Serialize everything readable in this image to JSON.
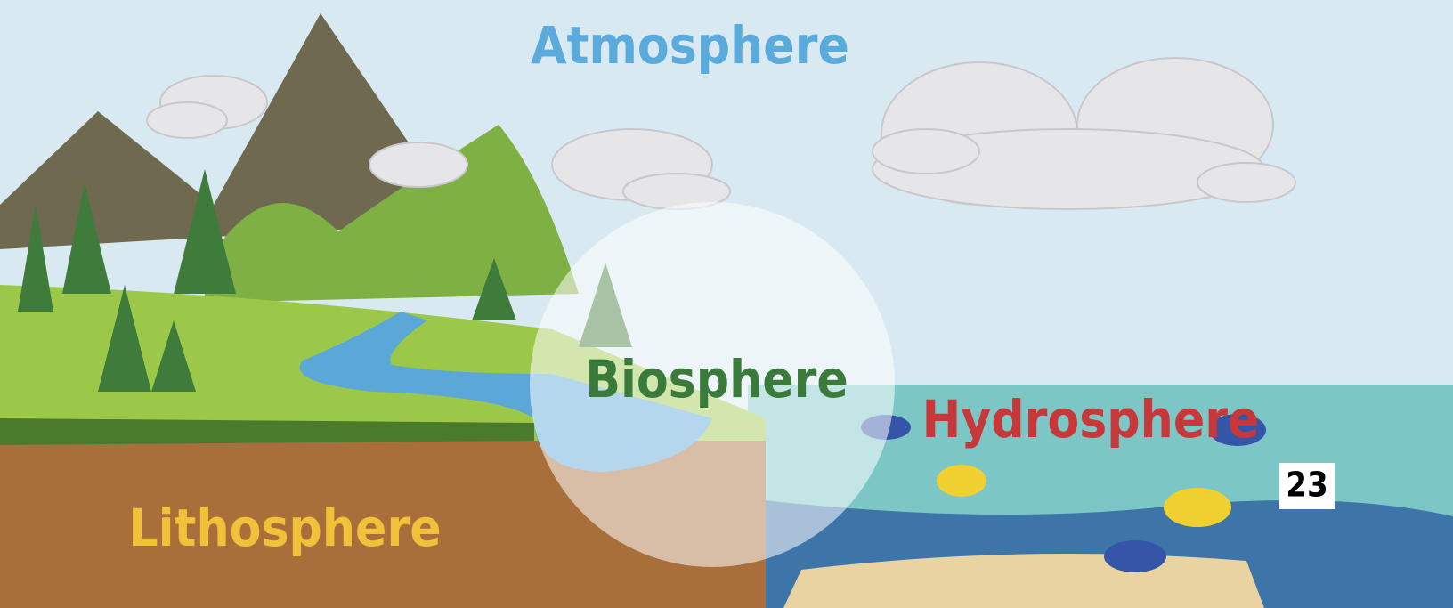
{
  "labels": {
    "atmosphere": "Atmosphere",
    "biosphere": "Biosphere",
    "hydrosphere": "Hydrosphere",
    "lithosphere": "Lithosphere"
  },
  "page_number": "23"
}
